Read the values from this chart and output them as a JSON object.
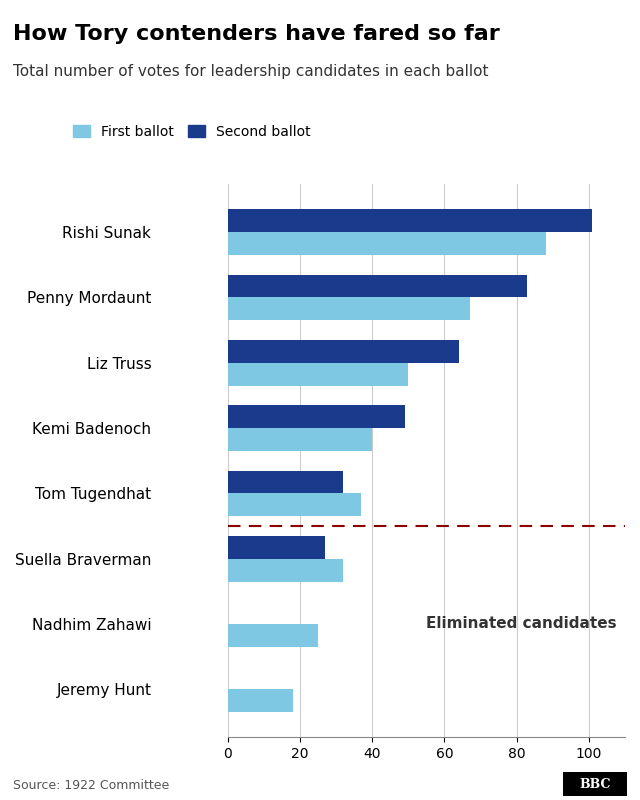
{
  "title": "How Tory contenders have fared so far",
  "subtitle": "Total number of votes for leadership candidates in each ballot",
  "source": "Source: 1922 Committee",
  "legend": [
    "First ballot",
    "Second ballot"
  ],
  "color_first": "#7EC8E3",
  "color_second": "#1A3A8C",
  "candidates": [
    "Rishi Sunak",
    "Penny Mordaunt",
    "Liz Truss",
    "Kemi Badenoch",
    "Tom Tugendhat",
    "Suella Braverman",
    "Nadhim Zahawi",
    "Jeremy Hunt"
  ],
  "first_ballot": [
    88,
    67,
    50,
    40,
    37,
    32,
    25,
    18
  ],
  "second_ballot": [
    101,
    83,
    64,
    49,
    32,
    27,
    null,
    null
  ],
  "eliminated": [
    "Suella Braverman",
    "Nadhim Zahawi",
    "Jeremy Hunt"
  ],
  "dashed_line_after": 4,
  "xlim": [
    0,
    110
  ],
  "xticks": [
    0,
    20,
    40,
    60,
    80,
    100
  ],
  "bar_height": 0.35,
  "eliminated_label": "Eliminated candidates",
  "background_color": "#FFFFFF"
}
